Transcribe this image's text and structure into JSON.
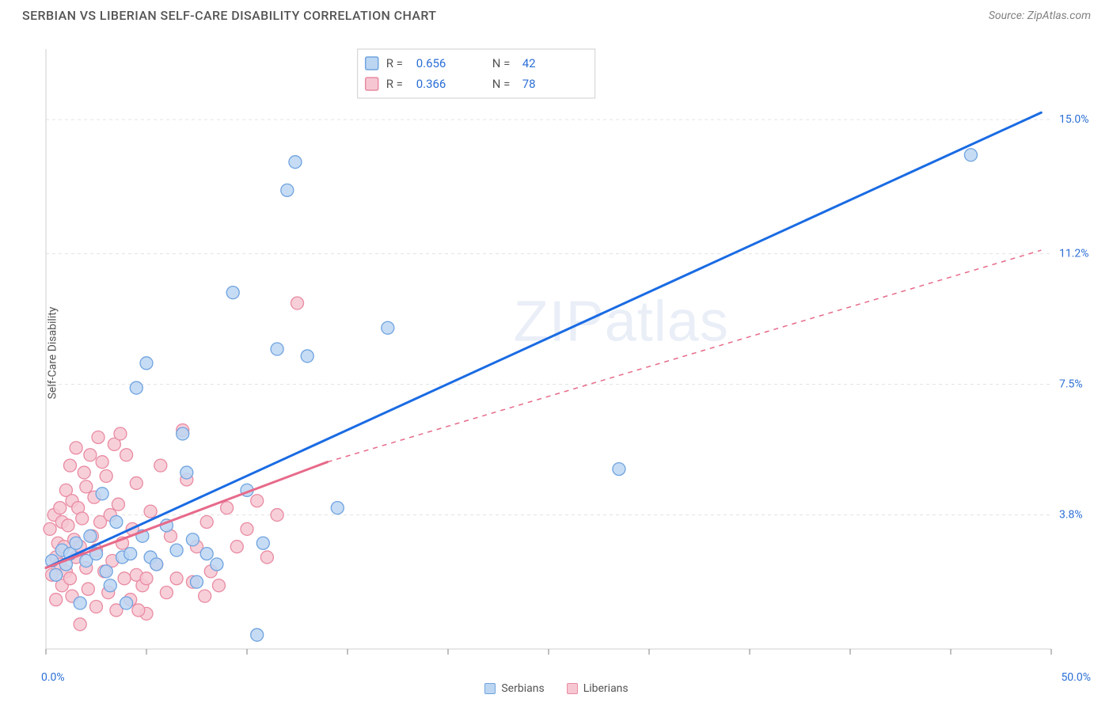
{
  "header": {
    "title": "SERBIAN VS LIBERIAN SELF-CARE DISABILITY CORRELATION CHART",
    "source_prefix": "Source: ",
    "source_name": "ZipAtlas.com"
  },
  "chart": {
    "type": "scatter",
    "ylabel": "Self-Care Disability",
    "watermark": "ZIPatlas",
    "background_color": "#ffffff",
    "grid_color": "#e3e3e3",
    "axis_color": "#cfcfcf",
    "tick_color": "#808080",
    "xlim": [
      0,
      50
    ],
    "ylim": [
      0,
      17
    ],
    "x_axis_labels": {
      "min": "0.0%",
      "max": "50.0%"
    },
    "y_gridlines": [
      {
        "value": 3.8,
        "label": "3.8%"
      },
      {
        "value": 7.5,
        "label": "7.5%"
      },
      {
        "value": 11.2,
        "label": "11.2%"
      },
      {
        "value": 15.0,
        "label": "15.0%"
      }
    ],
    "x_ticks": [
      0,
      5,
      10,
      15,
      20,
      25,
      30,
      35,
      40,
      45,
      50
    ],
    "value_label_color": "#2b6fd6",
    "stats_box": {
      "border_color": "#cfcfcf",
      "bg": "#ffffff",
      "label_color": "#545454",
      "value_color": "#2b6fd6",
      "rows": [
        {
          "swatch_fill": "#bcd6f2",
          "swatch_stroke": "#6fa3e0",
          "R": "0.656",
          "N": "42"
        },
        {
          "swatch_fill": "#f6c7d2",
          "swatch_stroke": "#e98ba2",
          "R": "0.366",
          "N": "78"
        }
      ]
    },
    "series": [
      {
        "name": "Serbians",
        "marker_fill": "#bcd6f2",
        "marker_stroke": "#6fa3e0",
        "marker_radius": 8,
        "marker_opacity": 0.85,
        "trend": {
          "color": "#1a6be3",
          "width": 3,
          "solid_segment": {
            "x1": 0.0,
            "y1": 2.3,
            "x2": 49.5,
            "y2": 15.2
          },
          "dash_segment": null
        },
        "points": [
          [
            0.3,
            2.5
          ],
          [
            0.5,
            2.1
          ],
          [
            0.8,
            2.8
          ],
          [
            1.0,
            2.4
          ],
          [
            1.2,
            2.7
          ],
          [
            1.5,
            3.0
          ],
          [
            1.7,
            1.3
          ],
          [
            2.0,
            2.5
          ],
          [
            2.2,
            3.2
          ],
          [
            2.5,
            2.7
          ],
          [
            2.8,
            4.4
          ],
          [
            3.0,
            2.2
          ],
          [
            3.5,
            3.6
          ],
          [
            3.8,
            2.6
          ],
          [
            4.0,
            1.3
          ],
          [
            4.2,
            2.7
          ],
          [
            4.5,
            7.4
          ],
          [
            4.8,
            3.2
          ],
          [
            5.0,
            8.1
          ],
          [
            5.2,
            2.6
          ],
          [
            5.5,
            2.4
          ],
          [
            6.0,
            3.5
          ],
          [
            6.5,
            2.8
          ],
          [
            6.8,
            6.1
          ],
          [
            7.0,
            5.0
          ],
          [
            7.3,
            3.1
          ],
          [
            7.5,
            1.9
          ],
          [
            8.0,
            2.7
          ],
          [
            8.5,
            2.4
          ],
          [
            9.3,
            10.1
          ],
          [
            10.0,
            4.5
          ],
          [
            10.5,
            0.4
          ],
          [
            10.8,
            3.0
          ],
          [
            11.5,
            8.5
          ],
          [
            12.0,
            13.0
          ],
          [
            12.4,
            13.8
          ],
          [
            13.0,
            8.3
          ],
          [
            14.5,
            4.0
          ],
          [
            17.0,
            9.1
          ],
          [
            28.5,
            5.1
          ],
          [
            46.0,
            14.0
          ],
          [
            3.2,
            1.8
          ]
        ]
      },
      {
        "name": "Liberians",
        "marker_fill": "#f6c7d2",
        "marker_stroke": "#e98ba2",
        "marker_radius": 8,
        "marker_opacity": 0.85,
        "trend": {
          "color": "#e76a8a",
          "width": 3,
          "solid_segment": {
            "x1": 0.0,
            "y1": 2.3,
            "x2": 14.0,
            "y2": 5.3
          },
          "dash_segment": {
            "x1": 14.0,
            "y1": 5.3,
            "x2": 49.5,
            "y2": 11.3
          }
        },
        "points": [
          [
            0.2,
            3.4
          ],
          [
            0.3,
            2.1
          ],
          [
            0.4,
            3.8
          ],
          [
            0.5,
            2.6
          ],
          [
            0.5,
            1.4
          ],
          [
            0.6,
            3.0
          ],
          [
            0.7,
            4.0
          ],
          [
            0.7,
            2.4
          ],
          [
            0.8,
            3.6
          ],
          [
            0.8,
            1.8
          ],
          [
            0.9,
            2.9
          ],
          [
            1.0,
            4.5
          ],
          [
            1.0,
            2.2
          ],
          [
            1.1,
            3.5
          ],
          [
            1.2,
            2.0
          ],
          [
            1.2,
            5.2
          ],
          [
            1.3,
            4.2
          ],
          [
            1.3,
            1.5
          ],
          [
            1.4,
            3.1
          ],
          [
            1.5,
            5.7
          ],
          [
            1.5,
            2.6
          ],
          [
            1.6,
            4.0
          ],
          [
            1.7,
            2.9
          ],
          [
            1.7,
            0.7
          ],
          [
            1.8,
            3.7
          ],
          [
            1.9,
            5.0
          ],
          [
            2.0,
            2.3
          ],
          [
            2.0,
            4.6
          ],
          [
            2.1,
            1.7
          ],
          [
            2.2,
            5.5
          ],
          [
            2.3,
            3.2
          ],
          [
            2.4,
            4.3
          ],
          [
            2.5,
            2.8
          ],
          [
            2.5,
            1.2
          ],
          [
            2.6,
            6.0
          ],
          [
            2.7,
            3.6
          ],
          [
            2.8,
            5.3
          ],
          [
            2.9,
            2.2
          ],
          [
            3.0,
            4.9
          ],
          [
            3.1,
            1.6
          ],
          [
            3.2,
            3.8
          ],
          [
            3.3,
            2.5
          ],
          [
            3.4,
            5.8
          ],
          [
            3.5,
            1.1
          ],
          [
            3.6,
            4.1
          ],
          [
            3.8,
            3.0
          ],
          [
            3.9,
            2.0
          ],
          [
            4.0,
            5.5
          ],
          [
            4.2,
            1.4
          ],
          [
            4.3,
            3.4
          ],
          [
            4.5,
            2.1
          ],
          [
            4.5,
            4.7
          ],
          [
            4.8,
            1.8
          ],
          [
            5.0,
            2.0
          ],
          [
            5.0,
            1.0
          ],
          [
            5.2,
            3.9
          ],
          [
            5.5,
            2.4
          ],
          [
            5.7,
            5.2
          ],
          [
            6.0,
            1.6
          ],
          [
            6.2,
            3.2
          ],
          [
            6.5,
            2.0
          ],
          [
            7.0,
            4.8
          ],
          [
            7.3,
            1.9
          ],
          [
            7.5,
            2.9
          ],
          [
            7.9,
            1.5
          ],
          [
            8.0,
            3.6
          ],
          [
            8.2,
            2.2
          ],
          [
            8.6,
            1.8
          ],
          [
            9.0,
            4.0
          ],
          [
            9.5,
            2.9
          ],
          [
            10.0,
            3.4
          ],
          [
            10.5,
            4.2
          ],
          [
            11.0,
            2.6
          ],
          [
            11.5,
            3.8
          ],
          [
            12.5,
            9.8
          ],
          [
            6.8,
            6.2
          ],
          [
            4.6,
            1.1
          ],
          [
            3.7,
            6.1
          ]
        ]
      }
    ],
    "bottom_legend": [
      {
        "label": "Serbians",
        "swatch_fill": "#bcd6f2",
        "swatch_stroke": "#6fa3e0"
      },
      {
        "label": "Liberians",
        "swatch_fill": "#f6c7d2",
        "swatch_stroke": "#e98ba2"
      }
    ]
  }
}
